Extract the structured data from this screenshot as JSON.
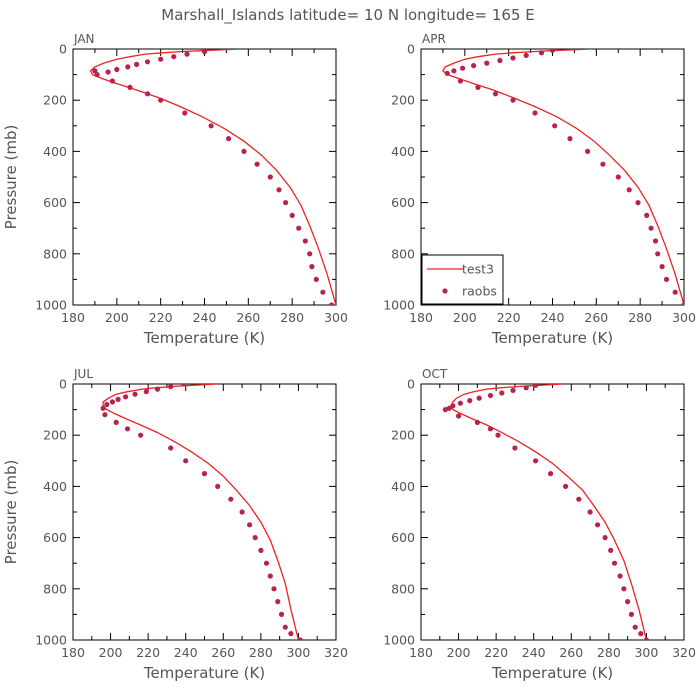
{
  "figure": {
    "title": "Marshall_Islands  latitude= 10 N longitude= 165 E"
  },
  "colors": {
    "model": "#ee2222",
    "obs": "#b8234d",
    "axis": "#000000",
    "text": "#555555"
  },
  "legend": {
    "placement": "lower-left",
    "panel": 1
  },
  "chart_data": [
    {
      "type": "line",
      "panel_label": "JAN",
      "xlabel": "Temperature (K)",
      "ylabel": "Pressure (mb)",
      "xlim": [
        180,
        300
      ],
      "ylim": [
        1000,
        0
      ],
      "xticks": [
        "180",
        "200",
        "220",
        "240",
        "260",
        "280",
        "300"
      ],
      "yticks": [
        "0",
        "200",
        "400",
        "600",
        "800",
        "1000"
      ],
      "series": [
        {
          "name": "test3",
          "style": "line",
          "x": [
            257,
            242,
            229,
            221,
            213,
            206,
            200,
            194,
            190,
            188,
            189,
            193,
            200,
            209,
            219,
            229,
            239,
            249,
            258,
            266,
            273,
            279,
            284,
            288,
            292,
            296,
            300
          ],
          "y": [
            0,
            5,
            10,
            15,
            20,
            30,
            40,
            55,
            70,
            85,
            100,
            115,
            135,
            160,
            190,
            225,
            265,
            310,
            360,
            415,
            475,
            540,
            610,
            690,
            780,
            880,
            1000
          ]
        },
        {
          "name": "raobs",
          "style": "dots",
          "x": [
            240,
            232,
            226,
            220,
            214,
            209,
            205,
            200,
            196,
            191,
            190,
            198,
            206,
            214,
            220,
            231,
            243,
            251,
            258,
            264,
            270,
            274,
            277,
            280,
            283,
            286,
            288,
            289,
            291,
            294,
            298
          ],
          "y": [
            10,
            20,
            30,
            40,
            50,
            60,
            70,
            80,
            90,
            100,
            85,
            125,
            150,
            175,
            200,
            250,
            300,
            350,
            400,
            450,
            500,
            550,
            600,
            650,
            700,
            750,
            800,
            850,
            900,
            950,
            1000
          ]
        }
      ]
    },
    {
      "type": "line",
      "panel_label": "APR",
      "xlabel": "Temperature (K)",
      "ylabel": "",
      "xlim": [
        180,
        300
      ],
      "ylim": [
        1000,
        0
      ],
      "xticks": [
        "180",
        "200",
        "220",
        "240",
        "260",
        "280",
        "300"
      ],
      "yticks": [
        "0",
        "200",
        "400",
        "600",
        "800",
        "1000"
      ],
      "series": [
        {
          "name": "test3",
          "style": "line",
          "x": [
            258,
            243,
            231,
            222,
            214,
            206,
            200,
            195,
            191,
            190,
            192,
            197,
            204,
            213,
            222,
            232,
            242,
            251,
            259,
            266,
            273,
            279,
            284,
            288,
            292,
            296,
            300
          ],
          "y": [
            0,
            5,
            10,
            15,
            20,
            30,
            40,
            55,
            70,
            85,
            100,
            115,
            135,
            160,
            190,
            225,
            265,
            310,
            360,
            415,
            475,
            540,
            610,
            690,
            780,
            880,
            1000
          ]
        },
        {
          "name": "raobs",
          "style": "dots",
          "x": [
            240,
            235,
            228,
            222,
            216,
            210,
            204,
            199,
            195,
            192,
            198,
            206,
            214,
            222,
            232,
            241,
            248,
            256,
            263,
            270,
            275,
            279,
            283,
            285,
            287,
            288,
            290,
            292,
            296,
            300
          ],
          "y": [
            5,
            15,
            25,
            35,
            45,
            55,
            65,
            75,
            85,
            95,
            125,
            150,
            175,
            200,
            250,
            300,
            350,
            400,
            450,
            500,
            550,
            600,
            650,
            700,
            750,
            800,
            850,
            900,
            950,
            1000
          ]
        }
      ]
    },
    {
      "type": "line",
      "panel_label": "JUL",
      "xlabel": "Temperature (K)",
      "ylabel": "Pressure (mb)",
      "xlim": [
        180,
        320
      ],
      "ylim": [
        1000,
        0
      ],
      "xticks": [
        "180",
        "200",
        "220",
        "240",
        "260",
        "280",
        "300",
        "320"
      ],
      "yticks": [
        "0",
        "200",
        "400",
        "600",
        "800",
        "1000"
      ],
      "series": [
        {
          "name": "test3",
          "style": "line",
          "x": [
            257,
            243,
            232,
            224,
            217,
            209,
            203,
            199,
            196,
            196,
            198,
            202,
            208,
            216,
            225,
            234,
            243,
            252,
            260,
            267,
            274,
            280,
            285,
            289,
            293,
            296,
            300
          ],
          "y": [
            0,
            5,
            10,
            15,
            20,
            30,
            40,
            55,
            70,
            85,
            100,
            115,
            135,
            160,
            190,
            225,
            265,
            310,
            360,
            415,
            475,
            540,
            610,
            690,
            780,
            880,
            1000
          ]
        },
        {
          "name": "raobs",
          "style": "dots",
          "x": [
            239,
            232,
            225,
            219,
            213,
            208,
            204,
            201,
            198,
            196,
            197,
            203,
            209,
            216,
            232,
            240,
            250,
            257,
            264,
            270,
            274,
            277,
            280,
            283,
            285,
            287,
            289,
            291,
            293,
            296,
            301
          ],
          "y": [
            0,
            10,
            20,
            30,
            40,
            50,
            60,
            70,
            80,
            95,
            120,
            150,
            175,
            200,
            250,
            300,
            350,
            400,
            450,
            500,
            550,
            600,
            650,
            700,
            750,
            800,
            850,
            900,
            950,
            975,
            1000
          ]
        }
      ]
    },
    {
      "type": "line",
      "panel_label": "OCT",
      "xlabel": "Temperature (K)",
      "ylabel": "",
      "xlim": [
        180,
        320
      ],
      "ylim": [
        1000,
        0
      ],
      "xticks": [
        "180",
        "200",
        "220",
        "240",
        "260",
        "280",
        "300",
        "320"
      ],
      "yticks": [
        "0",
        "200",
        "400",
        "600",
        "800",
        "1000"
      ],
      "series": [
        {
          "name": "test3",
          "style": "line",
          "x": [
            256,
            243,
            231,
            222,
            215,
            208,
            203,
            199,
            197,
            196,
            197,
            201,
            207,
            215,
            223,
            232,
            241,
            250,
            258,
            266,
            272,
            278,
            283,
            288,
            292,
            296,
            300
          ],
          "y": [
            0,
            5,
            10,
            15,
            20,
            30,
            40,
            55,
            70,
            85,
            100,
            115,
            135,
            160,
            190,
            225,
            265,
            310,
            360,
            415,
            475,
            540,
            610,
            690,
            780,
            880,
            1000
          ]
        },
        {
          "name": "raobs",
          "style": "dots",
          "x": [
            241,
            236,
            229,
            223,
            217,
            211,
            206,
            201,
            197,
            195,
            193,
            200,
            210,
            217,
            221,
            230,
            241,
            249,
            257,
            264,
            270,
            274,
            278,
            281,
            283,
            286,
            288,
            290,
            292,
            294,
            297,
            300
          ],
          "y": [
            5,
            15,
            25,
            35,
            45,
            55,
            65,
            75,
            85,
            95,
            100,
            125,
            150,
            175,
            200,
            250,
            300,
            350,
            400,
            450,
            500,
            550,
            600,
            650,
            700,
            750,
            800,
            850,
            900,
            950,
            975,
            1000
          ]
        }
      ]
    }
  ]
}
